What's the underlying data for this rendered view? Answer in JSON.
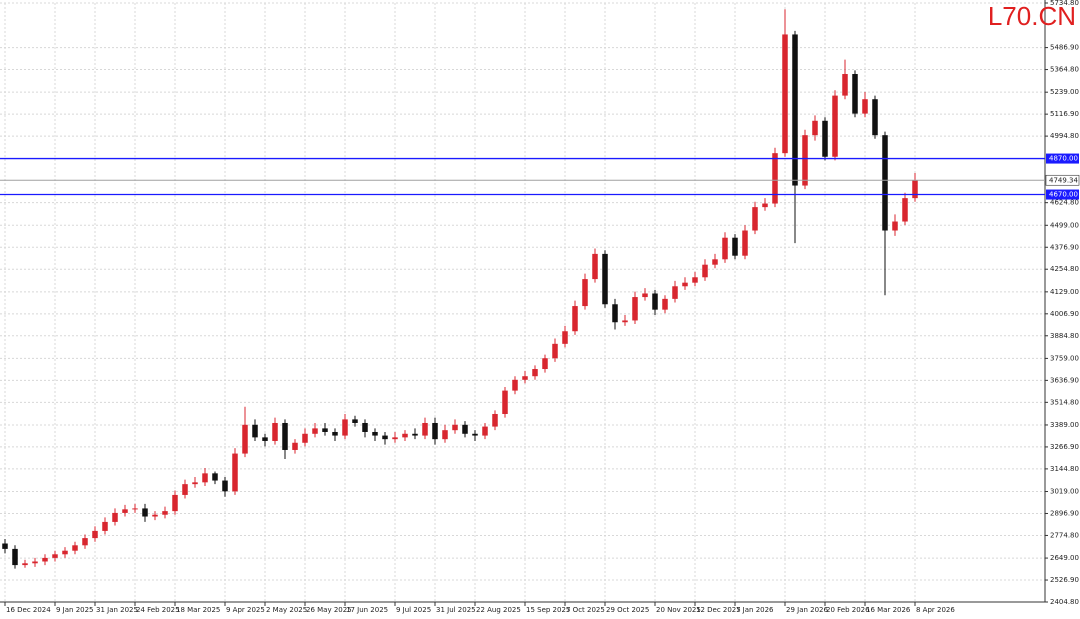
{
  "chart_data": {
    "type": "candlestick",
    "watermark": "L70.CN",
    "up_color": "#d8262f",
    "down_color": "#111111",
    "grid": true,
    "xlim": [
      -0.5,
      104
    ],
    "ylim": [
      2404.8,
      5734.8
    ],
    "xticks": [
      {
        "value": 0,
        "label": "16 Dec 2024"
      },
      {
        "value": 5,
        "label": "9 Jan 2025"
      },
      {
        "value": 9,
        "label": "31 Jan 2025"
      },
      {
        "value": 13,
        "label": "24 Feb 2025"
      },
      {
        "value": 17,
        "label": "18 Mar 2025"
      },
      {
        "value": 22,
        "label": "9 Apr 2025"
      },
      {
        "value": 26,
        "label": "2 May 2025"
      },
      {
        "value": 30,
        "label": "26 May 2025"
      },
      {
        "value": 34,
        "label": "17 Jun 2025"
      },
      {
        "value": 39,
        "label": "9 Jul 2025"
      },
      {
        "value": 43,
        "label": "31 Jul 2025"
      },
      {
        "value": 47,
        "label": "22 Aug 2025"
      },
      {
        "value": 52,
        "label": "15 Sep 2025"
      },
      {
        "value": 56,
        "label": "7 Oct 2025"
      },
      {
        "value": 60,
        "label": "29 Oct 2025"
      },
      {
        "value": 65,
        "label": "20 Nov 2025"
      },
      {
        "value": 69,
        "label": "12 Dec 2025"
      },
      {
        "value": 73,
        "label": "7 Jan 2026"
      },
      {
        "value": 78,
        "label": "29 Jan 2026"
      },
      {
        "value": 82,
        "label": "20 Feb 2026"
      },
      {
        "value": 86,
        "label": "16 Mar 2026"
      },
      {
        "value": 91,
        "label": "8 Apr 2026"
      }
    ],
    "yticks": [
      {
        "value": 2404.8,
        "label": "2404.80"
      },
      {
        "value": 2526.9,
        "label": "2526.90"
      },
      {
        "value": 2649,
        "label": "2649.00"
      },
      {
        "value": 2774.8,
        "label": "2774.80"
      },
      {
        "value": 2896.9,
        "label": "2896.90"
      },
      {
        "value": 3019,
        "label": "3019.00"
      },
      {
        "value": 3144.8,
        "label": "3144.80"
      },
      {
        "value": 3266.9,
        "label": "3266.90"
      },
      {
        "value": 3389,
        "label": "3389.00"
      },
      {
        "value": 3514.8,
        "label": "3514.80"
      },
      {
        "value": 3636.9,
        "label": "3636.90"
      },
      {
        "value": 3759,
        "label": "3759.00"
      },
      {
        "value": 3884.8,
        "label": "3884.80"
      },
      {
        "value": 4006.9,
        "label": "4006.90"
      },
      {
        "value": 4129,
        "label": "4129.00"
      },
      {
        "value": 4254.8,
        "label": "4254.80"
      },
      {
        "value": 4376.9,
        "label": "4376.90"
      },
      {
        "value": 4499,
        "label": "4499.00"
      },
      {
        "value": 4624.8,
        "label": "4624.80"
      },
      {
        "value": 4994.8,
        "label": "4994.80"
      },
      {
        "value": 5116.9,
        "label": "5116.90"
      },
      {
        "value": 5239,
        "label": "5239.00"
      },
      {
        "value": 5364.8,
        "label": "5364.80"
      },
      {
        "value": 5486.9,
        "label": "5486.90"
      },
      {
        "value": 5734.8,
        "label": "5734.80"
      }
    ],
    "hlines": [
      {
        "value": 4870,
        "label": "4870.00",
        "color": "#1a1aff"
      },
      {
        "value": 4670,
        "label": "4670.00",
        "color": "#1a1aff"
      }
    ],
    "current_price": 4749.34,
    "current_color": "#a0a0a0",
    "open": [
      2730,
      2700,
      2610,
      2620,
      2630,
      2650,
      2670,
      2690,
      2720,
      2760,
      2800,
      2850,
      2900,
      2920,
      2925,
      2880,
      2890,
      2910,
      3000,
      3060,
      3070,
      3120,
      3080,
      3020,
      3230,
      3390,
      3320,
      3300,
      3400,
      3250,
      3290,
      3340,
      3370,
      3350,
      3330,
      3420,
      3400,
      3350,
      3330,
      3310,
      3320,
      3340,
      3330,
      3400,
      3310,
      3360,
      3390,
      3340,
      3330,
      3380,
      3450,
      3580,
      3640,
      3660,
      3700,
      3760,
      3840,
      3910,
      4050,
      4200,
      4340,
      4060,
      3960,
      3970,
      4100,
      4120,
      4030,
      4090,
      4160,
      4180,
      4210,
      4280,
      4310,
      4430,
      4330,
      4470,
      4600,
      4620,
      4900,
      5560,
      4720,
      5000,
      5080,
      4880,
      5220,
      5340,
      5120,
      5200,
      5000,
      4470,
      4520,
      4650
    ],
    "high": [
      2755,
      2720,
      2640,
      2650,
      2670,
      2690,
      2710,
      2740,
      2780,
      2825,
      2875,
      2925,
      2945,
      2950,
      2950,
      2910,
      2935,
      3025,
      3085,
      3100,
      3150,
      3130,
      3100,
      3260,
      3490,
      3420,
      3340,
      3430,
      3420,
      3310,
      3370,
      3400,
      3400,
      3370,
      3450,
      3440,
      3420,
      3370,
      3350,
      3350,
      3360,
      3370,
      3430,
      3430,
      3390,
      3420,
      3410,
      3360,
      3400,
      3470,
      3600,
      3660,
      3690,
      3720,
      3780,
      3870,
      3940,
      4080,
      4230,
      4370,
      4360,
      4090,
      4000,
      4130,
      4150,
      4140,
      4110,
      4190,
      4210,
      4240,
      4310,
      4340,
      4460,
      4450,
      4500,
      4630,
      4650,
      4930,
      5700,
      5580,
      5030,
      5110,
      5100,
      5250,
      5420,
      5360,
      5240,
      5220,
      5020,
      4560,
      4680,
      4790
    ],
    "low": [
      2675,
      2590,
      2595,
      2600,
      2610,
      2630,
      2650,
      2670,
      2700,
      2740,
      2780,
      2830,
      2880,
      2900,
      2850,
      2860,
      2870,
      2890,
      2980,
      3040,
      3050,
      3060,
      2990,
      3000,
      3210,
      3300,
      3270,
      3280,
      3200,
      3230,
      3270,
      3320,
      3330,
      3300,
      3310,
      3380,
      3320,
      3300,
      3280,
      3290,
      3300,
      3310,
      3310,
      3280,
      3290,
      3340,
      3320,
      3300,
      3310,
      3360,
      3430,
      3560,
      3620,
      3640,
      3680,
      3740,
      3820,
      3890,
      4030,
      4180,
      4040,
      3920,
      3940,
      3950,
      4080,
      4000,
      4010,
      4070,
      4140,
      4160,
      4190,
      4260,
      4290,
      4310,
      4310,
      4450,
      4580,
      4600,
      4880,
      4400,
      4700,
      4970,
      4860,
      4860,
      5200,
      5100,
      5100,
      4980,
      4110,
      4440,
      4500,
      4630
    ],
    "close": [
      2700,
      2610,
      2620,
      2630,
      2650,
      2670,
      2690,
      2720,
      2760,
      2800,
      2850,
      2900,
      2920,
      2925,
      2880,
      2890,
      2910,
      3000,
      3060,
      3070,
      3120,
      3080,
      3020,
      3230,
      3390,
      3320,
      3300,
      3400,
      3250,
      3290,
      3340,
      3370,
      3350,
      3330,
      3420,
      3400,
      3350,
      3330,
      3310,
      3320,
      3340,
      3330,
      3400,
      3310,
      3360,
      3390,
      3340,
      3330,
      3380,
      3450,
      3580,
      3640,
      3660,
      3700,
      3760,
      3840,
      3910,
      4050,
      4200,
      4340,
      4060,
      3960,
      3970,
      4100,
      4120,
      4030,
      4090,
      4160,
      4180,
      4210,
      4280,
      4310,
      4430,
      4330,
      4470,
      4600,
      4620,
      4900,
      5560,
      4720,
      5000,
      5080,
      4880,
      5220,
      5340,
      5120,
      5200,
      5000,
      4470,
      4520,
      4650,
      4749.34
    ]
  }
}
